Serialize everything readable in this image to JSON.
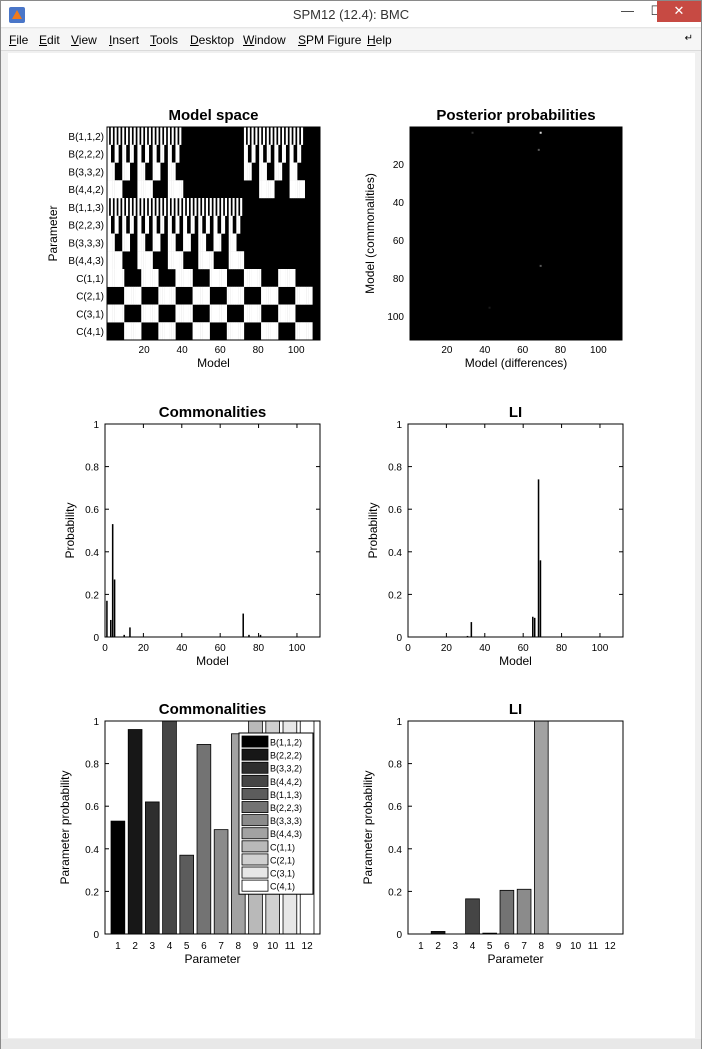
{
  "window": {
    "title": "SPM12 (12.4): BMC"
  },
  "menu": [
    {
      "pre": "",
      "u": "F",
      "post": "ile"
    },
    {
      "pre": "",
      "u": "E",
      "post": "dit"
    },
    {
      "pre": "",
      "u": "V",
      "post": "iew"
    },
    {
      "pre": "",
      "u": "I",
      "post": "nsert"
    },
    {
      "pre": "",
      "u": "T",
      "post": "ools"
    },
    {
      "pre": "",
      "u": "D",
      "post": "esktop"
    },
    {
      "pre": "",
      "u": "W",
      "post": "indow"
    },
    {
      "pre": "",
      "u": "S",
      "post": "PM Figure"
    },
    {
      "pre": "",
      "u": "H",
      "post": "elp"
    }
  ],
  "chart_data": [
    {
      "type": "heatmap",
      "title": "Model space",
      "xlabel": "Model",
      "ylabel": "Parameter",
      "xlim": [
        0.5,
        112.5
      ],
      "xticks": [
        20,
        40,
        60,
        80,
        100
      ],
      "rows": [
        "B(1,1,2)",
        "B(2,2,2)",
        "B(3,3,2)",
        "B(4,4,2)",
        "B(1,1,3)",
        "B(2,2,3)",
        "B(3,3,3)",
        "B(4,4,3)",
        "C(1,1)",
        "C(2,1)",
        "C(3,1)",
        "C(4,1)"
      ],
      "colormap": "gray (1 = white, 0 = black)"
    },
    {
      "type": "heatmap",
      "title": "Posterior probabilities",
      "xlabel": "Model (differences)",
      "ylabel": "Model (commonalities)",
      "xlim": [
        0.5,
        112.5
      ],
      "ylim": [
        0.5,
        112.5
      ],
      "xticks": [
        20,
        40,
        60,
        80,
        100
      ],
      "yticks": [
        20,
        40,
        60,
        80,
        100
      ],
      "colormap": "gray (almost all black)"
    },
    {
      "type": "bar",
      "title": "Commonalities",
      "xlabel": "Model",
      "ylabel": "Probability",
      "xlim": [
        0,
        112
      ],
      "ylim": [
        0,
        1
      ],
      "xticks": [
        0,
        20,
        40,
        60,
        80,
        100
      ],
      "yticks": [
        0,
        0.2,
        0.4,
        0.6,
        0.8,
        1
      ],
      "x": [
        1,
        3,
        4,
        5,
        10,
        13,
        72,
        75,
        81
      ],
      "values": [
        0.17,
        0.08,
        0.53,
        0.27,
        0.01,
        0.045,
        0.11,
        0.01,
        0.01
      ]
    },
    {
      "type": "bar",
      "title": "LI",
      "xlabel": "Model",
      "ylabel": "Probability",
      "xlim": [
        0,
        112
      ],
      "ylim": [
        0,
        1
      ],
      "xticks": [
        0,
        20,
        40,
        60,
        80,
        100
      ],
      "yticks": [
        0,
        0.2,
        0.4,
        0.6,
        0.8,
        1
      ],
      "x": [
        31,
        33,
        65,
        66,
        68,
        69
      ],
      "values": [
        0.005,
        0.07,
        0.095,
        0.09,
        0.74,
        0.36
      ]
    },
    {
      "type": "bar",
      "title": "Commonalities",
      "xlabel": "Parameter",
      "ylabel": "Parameter probability",
      "ylim": [
        0,
        1
      ],
      "yticks": [
        0,
        0.2,
        0.4,
        0.6,
        0.8,
        1
      ],
      "categories": [
        "1",
        "2",
        "3",
        "4",
        "5",
        "6",
        "7",
        "8",
        "9",
        "10",
        "11",
        "12"
      ],
      "values": [
        0.53,
        0.96,
        0.62,
        1.0,
        0.37,
        0.89,
        0.49,
        0.94,
        1.0,
        1.0,
        1.0,
        1.0
      ],
      "colors": [
        "#000000",
        "#171717",
        "#2e2e2e",
        "#454545",
        "#5c5c5c",
        "#737373",
        "#8b8b8b",
        "#a2a2a2",
        "#b9b9b9",
        "#d0d0d0",
        "#e7e7e7",
        "#ffffff"
      ],
      "legend": [
        "B(1,1,2)",
        "B(2,2,2)",
        "B(3,3,2)",
        "B(4,4,2)",
        "B(1,1,3)",
        "B(2,2,3)",
        "B(3,3,3)",
        "B(4,4,3)",
        "C(1,1)",
        "C(2,1)",
        "C(3,1)",
        "C(4,1)"
      ],
      "legend_position": "top-right"
    },
    {
      "type": "bar",
      "title": "LI",
      "xlabel": "Parameter",
      "ylabel": "Parameter probability",
      "ylim": [
        0,
        1
      ],
      "yticks": [
        0,
        0.2,
        0.4,
        0.6,
        0.8,
        1
      ],
      "categories": [
        "1",
        "2",
        "3",
        "4",
        "5",
        "6",
        "7",
        "8",
        "9",
        "10",
        "11",
        "12"
      ],
      "values": [
        0,
        0.012,
        0.0,
        0.165,
        0.004,
        0.205,
        0.21,
        1.0,
        0,
        0,
        0,
        0
      ],
      "colors": [
        "#000000",
        "#171717",
        "#2e2e2e",
        "#454545",
        "#5c5c5c",
        "#737373",
        "#8b8b8b",
        "#a2a2a2",
        "#b9b9b9",
        "#d0d0d0",
        "#e7e7e7",
        "#ffffff"
      ]
    }
  ]
}
